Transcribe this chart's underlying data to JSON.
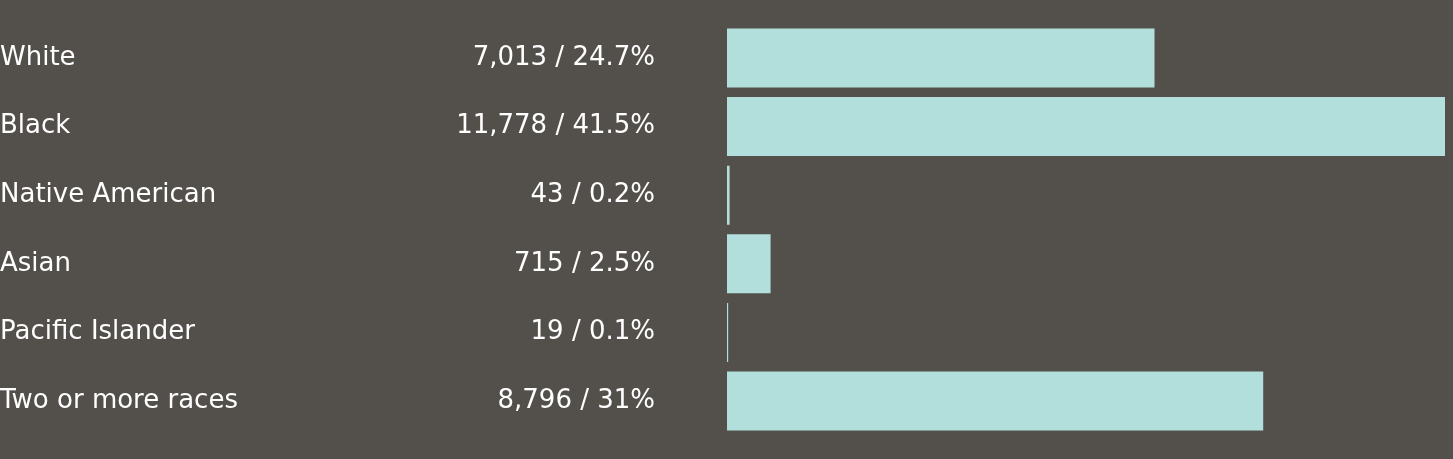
{
  "chart_data": {
    "type": "bar",
    "orientation": "horizontal",
    "tick_labels": "y",
    "categories": [
      "White",
      "Black",
      "Native American",
      "Asian",
      "Pacific Islander",
      "Two or more races"
    ],
    "values": [
      7013,
      11778,
      43,
      715,
      19,
      8796
    ],
    "value_labels": [
      "7,013 / 24.7%",
      "11,778 / 41.5%",
      "43 / 0.2%",
      "715 / 2.5%",
      "19 / 0.1%",
      "8,796 / 31%"
    ],
    "color": "#b2dfdb"
  }
}
